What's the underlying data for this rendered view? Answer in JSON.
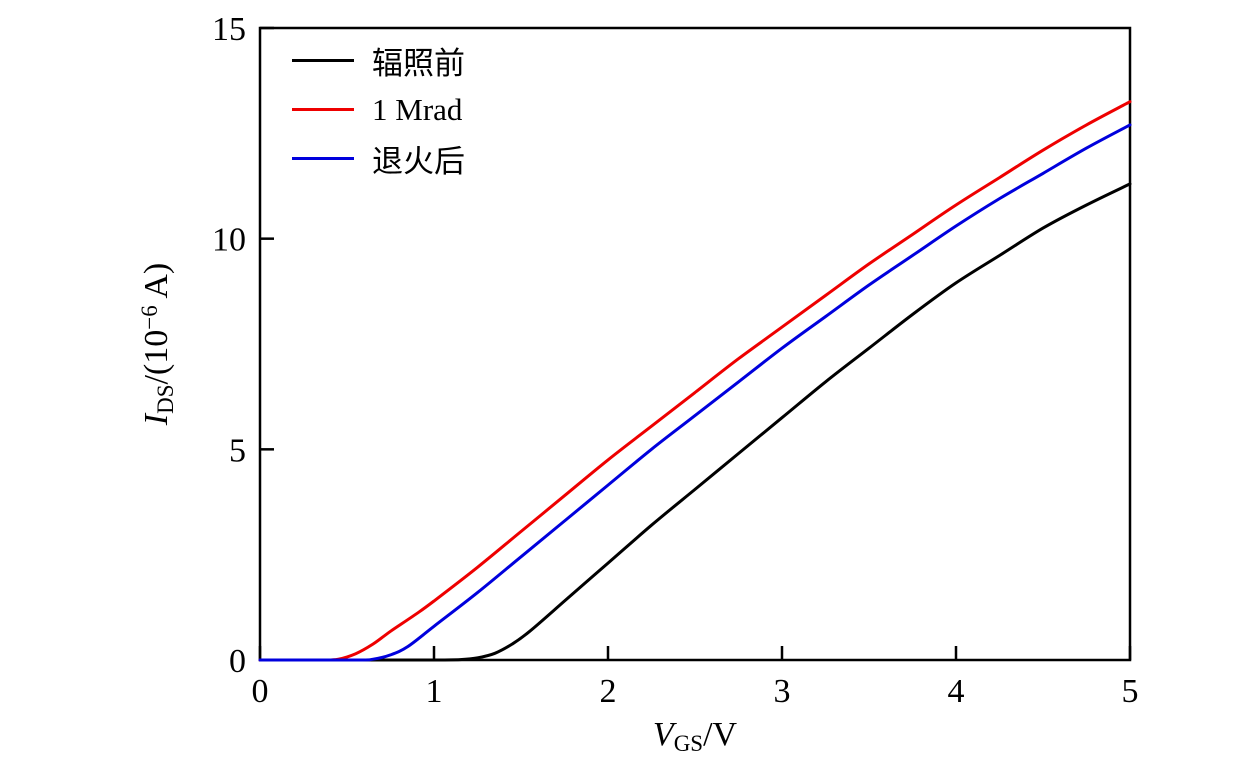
{
  "chart_data": {
    "type": "line",
    "title": "",
    "xlabel_plain": "V_GS/V",
    "ylabel_plain": "I_DS/(10^-6 A)",
    "x_label": {
      "variable": "V",
      "subscript": "GS",
      "suffix": "/V"
    },
    "y_label": {
      "variable": "I",
      "subscript": "DS",
      "mid": "/(10",
      "exponent": "−6",
      "suffix": " A)"
    },
    "xlim": [
      0,
      5
    ],
    "ylim": [
      0,
      15
    ],
    "xticks": [
      0,
      1,
      2,
      3,
      4,
      5
    ],
    "yticks": [
      0,
      5,
      10,
      15
    ],
    "grid": false,
    "legend_position": "top-left",
    "frame_color": "#000000",
    "series": [
      {
        "name": "辐照前",
        "color": "#000000",
        "threshold_voltage_V": 1.25,
        "points": [
          [
            0,
            0
          ],
          [
            0.6,
            0
          ],
          [
            1.0,
            0
          ],
          [
            1.15,
            0.01
          ],
          [
            1.25,
            0.05
          ],
          [
            1.35,
            0.16
          ],
          [
            1.45,
            0.38
          ],
          [
            1.55,
            0.68
          ],
          [
            1.75,
            1.4
          ],
          [
            2.0,
            2.3
          ],
          [
            2.25,
            3.2
          ],
          [
            2.5,
            4.05
          ],
          [
            2.75,
            4.9
          ],
          [
            3.0,
            5.75
          ],
          [
            3.25,
            6.6
          ],
          [
            3.5,
            7.4
          ],
          [
            3.75,
            8.2
          ],
          [
            4.0,
            8.95
          ],
          [
            4.25,
            9.6
          ],
          [
            4.5,
            10.25
          ],
          [
            4.75,
            10.8
          ],
          [
            5.0,
            11.3
          ]
        ]
      },
      {
        "name": "1 Mrad",
        "color": "#ee0000",
        "threshold_voltage_V": 0.45,
        "points": [
          [
            0,
            0
          ],
          [
            0.35,
            0
          ],
          [
            0.45,
            0.02
          ],
          [
            0.55,
            0.15
          ],
          [
            0.65,
            0.38
          ],
          [
            0.75,
            0.68
          ],
          [
            0.9,
            1.1
          ],
          [
            1.0,
            1.4
          ],
          [
            1.25,
            2.2
          ],
          [
            1.5,
            3.05
          ],
          [
            1.75,
            3.9
          ],
          [
            2.0,
            4.75
          ],
          [
            2.25,
            5.55
          ],
          [
            2.5,
            6.35
          ],
          [
            2.75,
            7.15
          ],
          [
            3.0,
            7.9
          ],
          [
            3.25,
            8.65
          ],
          [
            3.5,
            9.4
          ],
          [
            3.75,
            10.1
          ],
          [
            4.0,
            10.8
          ],
          [
            4.25,
            11.45
          ],
          [
            4.5,
            12.1
          ],
          [
            4.75,
            12.7
          ],
          [
            5.0,
            13.25
          ]
        ]
      },
      {
        "name": "退火后",
        "color": "#0000dd",
        "threshold_voltage_V": 0.65,
        "points": [
          [
            0,
            0
          ],
          [
            0.55,
            0
          ],
          [
            0.65,
            0.02
          ],
          [
            0.75,
            0.12
          ],
          [
            0.85,
            0.32
          ],
          [
            1.0,
            0.8
          ],
          [
            1.25,
            1.6
          ],
          [
            1.5,
            2.45
          ],
          [
            1.75,
            3.3
          ],
          [
            2.0,
            4.15
          ],
          [
            2.25,
            5.0
          ],
          [
            2.5,
            5.8
          ],
          [
            2.75,
            6.6
          ],
          [
            3.0,
            7.4
          ],
          [
            3.25,
            8.15
          ],
          [
            3.5,
            8.9
          ],
          [
            3.75,
            9.6
          ],
          [
            4.0,
            10.3
          ],
          [
            4.25,
            10.95
          ],
          [
            4.5,
            11.55
          ],
          [
            4.75,
            12.15
          ],
          [
            5.0,
            12.7
          ]
        ]
      }
    ]
  }
}
